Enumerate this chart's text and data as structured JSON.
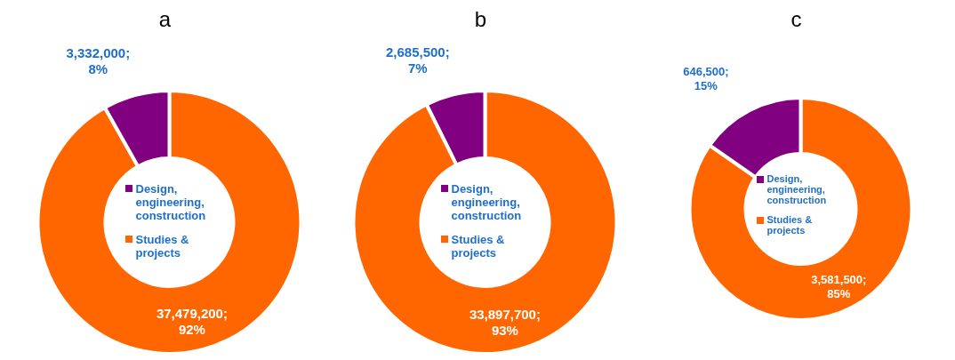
{
  "chart_data": [
    {
      "type": "donut",
      "title": "a",
      "categories": [
        "Studies & projects",
        "Design, engineering, construction"
      ],
      "values": [
        37479200,
        3332000
      ],
      "colors": [
        "#ff6600",
        "#800080"
      ],
      "value_labels": [
        "37,479,200; 92%",
        "3,332,000; 8%"
      ],
      "legend": "center"
    },
    {
      "type": "donut",
      "title": "b",
      "categories": [
        "Studies & projects",
        "Design, engineering, construction"
      ],
      "values": [
        33897700,
        2685500
      ],
      "colors": [
        "#ff6600",
        "#800080"
      ],
      "value_labels": [
        "33,897,700; 93%",
        "2,685,500; 7%"
      ],
      "legend": "center"
    },
    {
      "type": "donut",
      "title": "c",
      "categories": [
        "Studies & projects",
        "Design, engineering, construction"
      ],
      "values": [
        3581500,
        646500
      ],
      "colors": [
        "#ff6600",
        "#800080"
      ],
      "value_labels": [
        "3,581,500; 85%",
        "646,500; 15%"
      ],
      "legend": "center"
    }
  ]
}
